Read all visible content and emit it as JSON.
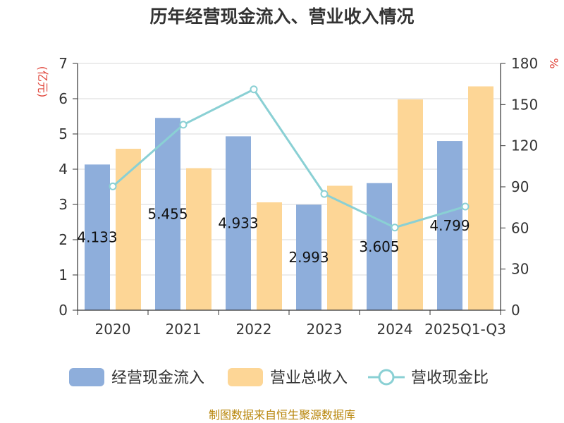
{
  "chart_data": {
    "type": "bar",
    "title": "历年经营现金流入、营业收入情况",
    "categories": [
      "2020",
      "2021",
      "2022",
      "2023",
      "2024",
      "2025Q1-Q3"
    ],
    "y_left": {
      "unit": "(亿元)",
      "ylim": [
        0,
        7
      ],
      "ticks": [
        "0",
        "1",
        "2",
        "3",
        "4",
        "5",
        "6",
        "7"
      ]
    },
    "y_right": {
      "unit": "%",
      "ylim": [
        0,
        180
      ],
      "ticks": [
        "0",
        "30",
        "60",
        "90",
        "120",
        "150",
        "180"
      ]
    },
    "series": [
      {
        "name": "经营现金流入",
        "type": "bar",
        "axis": "left",
        "color": "#8eaedb",
        "values": [
          4.133,
          5.455,
          4.933,
          2.993,
          3.605,
          4.799
        ],
        "labels": [
          "4.133",
          "5.455",
          "4.933",
          "2.993",
          "3.605",
          "4.799"
        ]
      },
      {
        "name": "营业总收入",
        "type": "bar",
        "axis": "left",
        "color": "#fdd696",
        "values": [
          4.58,
          4.03,
          3.06,
          3.53,
          5.98,
          6.35
        ]
      },
      {
        "name": "营收现金比",
        "type": "line",
        "axis": "right",
        "color": "#8ad0d4",
        "values": [
          90.3,
          135.3,
          161.1,
          84.8,
          60.3,
          75.6
        ]
      }
    ],
    "grid": true,
    "legend_position": "bottom",
    "source": "制图数据来自恒生聚源数据库"
  }
}
